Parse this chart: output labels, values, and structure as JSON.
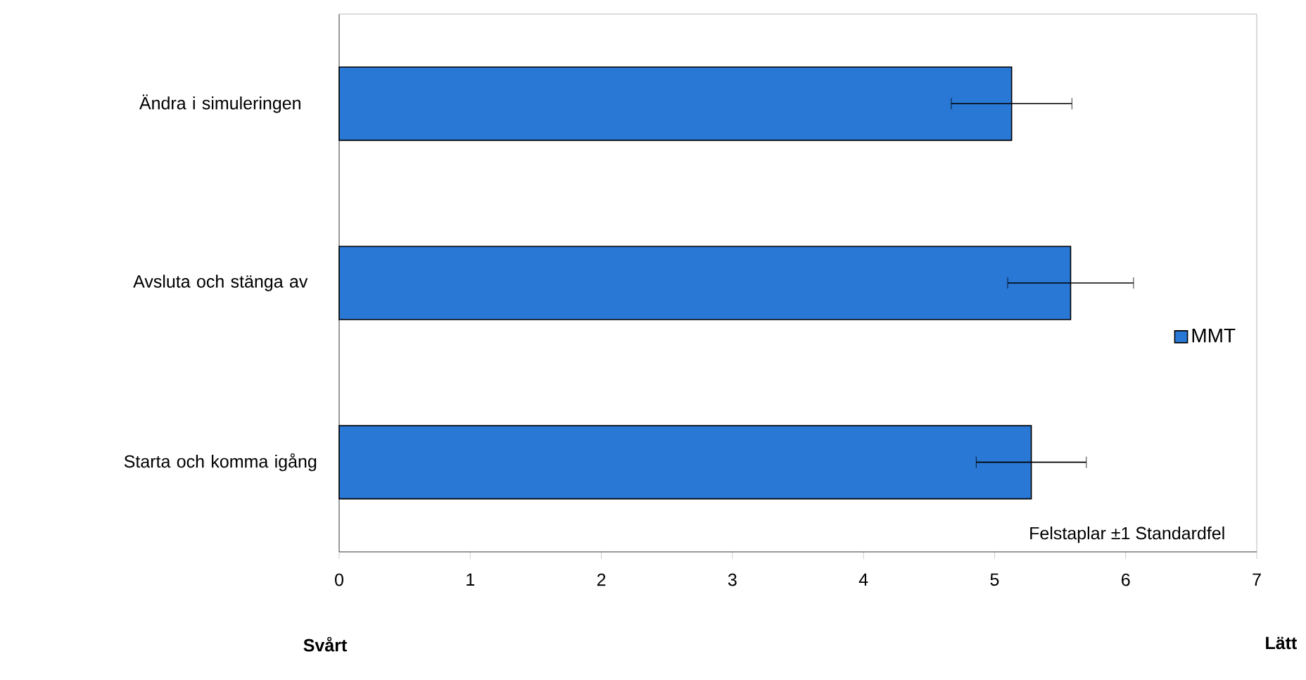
{
  "chart_data": {
    "type": "bar",
    "orientation": "horizontal",
    "categories": [
      "Ändra i simuleringen",
      "Avsluta och stänga av",
      "Starta och komma igång"
    ],
    "series": [
      {
        "name": "MMT",
        "color": "#2a78d6",
        "values": [
          5.13,
          5.58,
          5.28
        ],
        "errors": [
          0.46,
          0.48,
          0.42
        ]
      }
    ],
    "xlim": [
      0,
      7
    ],
    "xticks": [
      0,
      1,
      2,
      3,
      4,
      5,
      6,
      7
    ],
    "legend": "right",
    "grid": false,
    "annotations": [
      "Svårt",
      "Lätt",
      "Felstaplar ±1 Standardfel"
    ]
  }
}
